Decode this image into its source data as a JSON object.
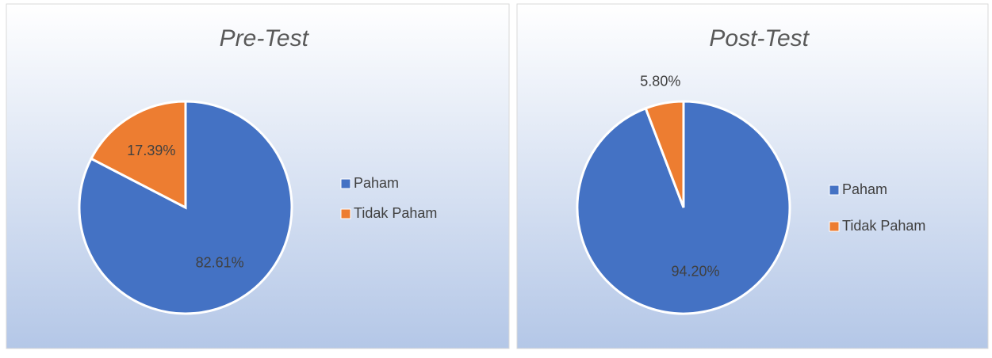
{
  "chart_data": [
    {
      "type": "pie",
      "title": "Pre-Test",
      "categories": [
        "Paham",
        "Tidak Paham"
      ],
      "values": [
        82.61,
        17.39
      ],
      "value_labels": [
        "82.61%",
        "17.39%"
      ],
      "colors": [
        "#4472c4",
        "#ed7d31"
      ],
      "legend": "right"
    },
    {
      "type": "pie",
      "title": "Post-Test",
      "categories": [
        "Paham",
        "Tidak Paham"
      ],
      "values": [
        94.2,
        5.8
      ],
      "value_labels": [
        "94.20%",
        "5.80%"
      ],
      "colors": [
        "#4472c4",
        "#ed7d31"
      ],
      "legend": "right"
    }
  ]
}
